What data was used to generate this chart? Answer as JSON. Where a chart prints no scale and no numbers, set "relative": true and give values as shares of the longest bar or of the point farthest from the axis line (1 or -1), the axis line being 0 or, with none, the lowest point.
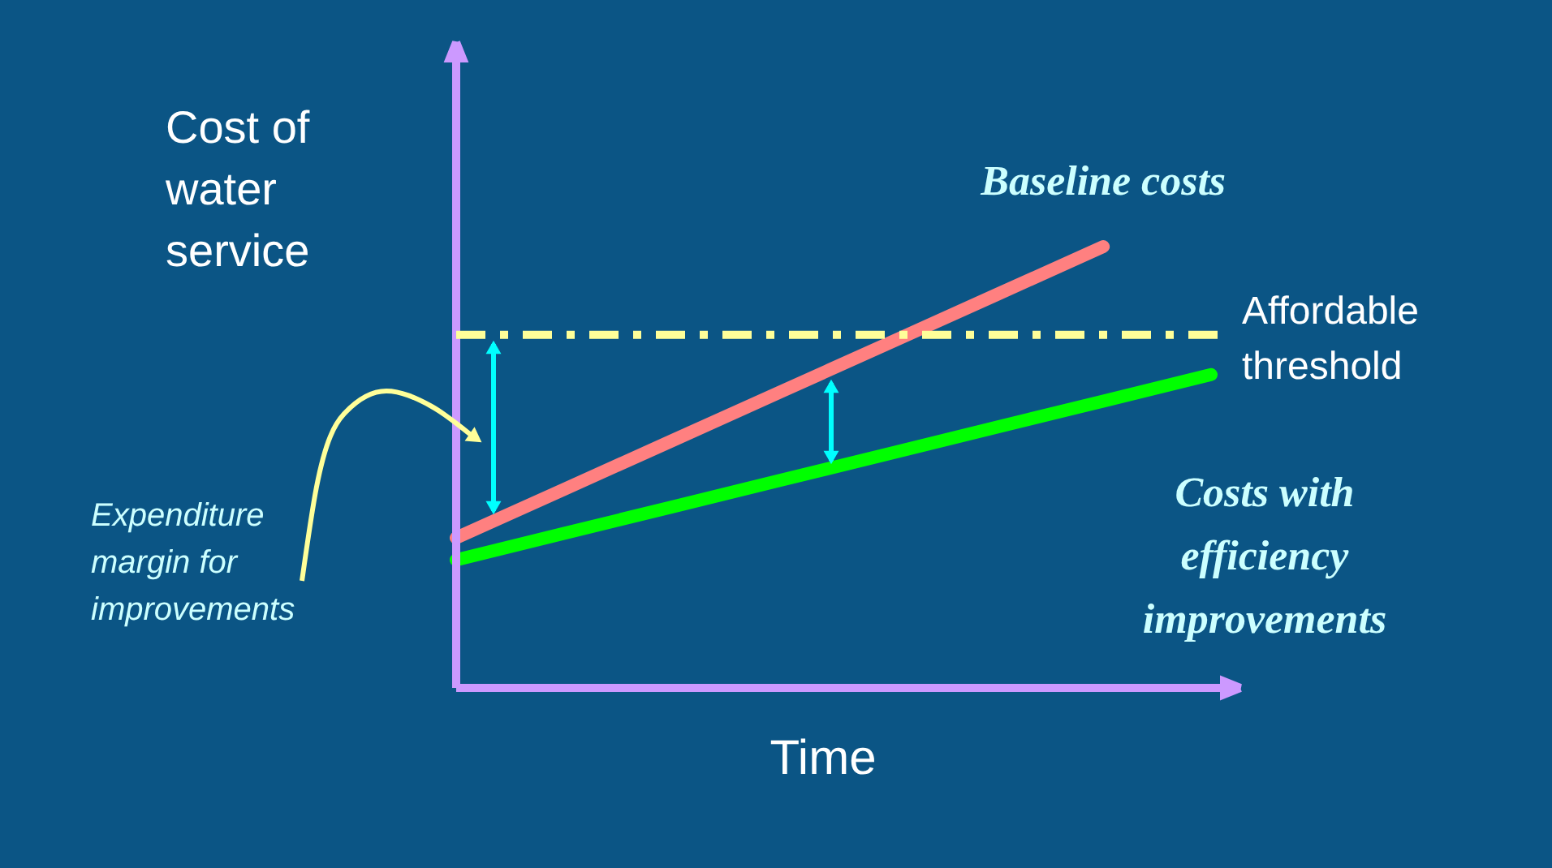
{
  "chart_data": {
    "type": "line",
    "relative": true,
    "xlabel": "Time",
    "ylabel": "Cost of water service",
    "categories": [
      null,
      null,
      null,
      null,
      null,
      null,
      null,
      null
    ],
    "series": [
      {
        "name": "Baseline costs",
        "color": "#ff8080",
        "values": [
          0.34,
          0.45,
          0.56,
          0.67,
          0.78,
          0.89,
          1.0,
          null
        ]
      },
      {
        "name": "Costs with efficiency improvements",
        "color": "#00ff00",
        "values": [
          0.29,
          0.35,
          0.41,
          0.47,
          0.53,
          0.59,
          0.65,
          0.71
        ]
      }
    ],
    "ref_lines": [
      {
        "axis": "y",
        "value": 0.8,
        "label": "Affordable threshold",
        "color": "#ffff99",
        "line_style": "dashdot"
      }
    ],
    "annotations": [
      "Expenditure margin for improvements"
    ],
    "line_style": "solid"
  }
}
